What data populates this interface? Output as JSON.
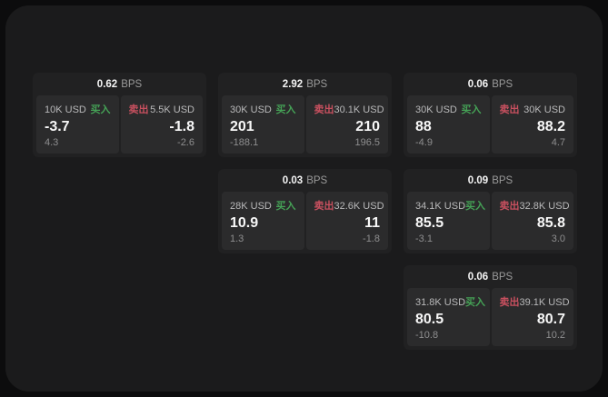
{
  "labels": {
    "bps_unit": "BPS",
    "buy_tag": "买入",
    "sell_tag": "卖出"
  },
  "colors": {
    "page_bg": "#0c0c0d",
    "window_bg": "#1b1b1c",
    "card_bg": "#212122",
    "panel_bg": "#2b2b2c",
    "buy_green": "#45a156",
    "sell_red": "#c8505f",
    "value_white": "#f7f7f7",
    "label_gray": "#b9b9ba",
    "sub_gray": "#8e8e8f"
  },
  "layout": {
    "columns": [
      [
        0
      ],
      [
        1,
        3
      ],
      [
        2,
        4,
        5
      ]
    ]
  },
  "cards": [
    {
      "bps": "0.62",
      "buy": {
        "amount": "10K USD",
        "value": "-3.7",
        "sub": "4.3"
      },
      "sell": {
        "amount": "5.5K USD",
        "value": "-1.8",
        "sub": "-2.6"
      }
    },
    {
      "bps": "2.92",
      "buy": {
        "amount": "30K USD",
        "value": "201",
        "sub": "-188.1"
      },
      "sell": {
        "amount": "30.1K USD",
        "value": "210",
        "sub": "196.5"
      }
    },
    {
      "bps": "0.06",
      "buy": {
        "amount": "30K USD",
        "value": "88",
        "sub": "-4.9"
      },
      "sell": {
        "amount": "30K USD",
        "value": "88.2",
        "sub": "4.7"
      }
    },
    {
      "bps": "0.03",
      "buy": {
        "amount": "28K USD",
        "value": "10.9",
        "sub": "1.3"
      },
      "sell": {
        "amount": "32.6K USD",
        "value": "11",
        "sub": "-1.8"
      }
    },
    {
      "bps": "0.09",
      "buy": {
        "amount": "34.1K USD",
        "value": "85.5",
        "sub": "-3.1"
      },
      "sell": {
        "amount": "32.8K USD",
        "value": "85.8",
        "sub": "3.0"
      }
    },
    {
      "bps": "0.06",
      "buy": {
        "amount": "31.8K USD",
        "value": "80.5",
        "sub": "-10.8"
      },
      "sell": {
        "amount": "39.1K USD",
        "value": "80.7",
        "sub": "10.2"
      }
    }
  ]
}
